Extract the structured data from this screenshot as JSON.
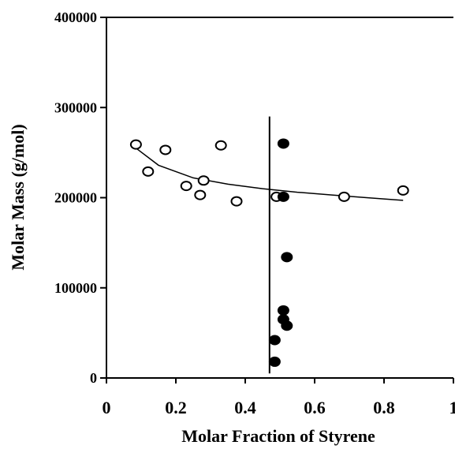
{
  "chart_data": {
    "type": "scatter",
    "title": "",
    "xlabel": "Molar Fraction of Styrene",
    "ylabel": "Molar Mass (g/mol)",
    "xlim": [
      0,
      1
    ],
    "ylim": [
      0,
      400000
    ],
    "x_ticks": [
      "0",
      "0.2",
      "0.4",
      "0.6",
      "0.8",
      "1"
    ],
    "y_ticks": [
      "0",
      "100000",
      "200000",
      "300000",
      "400000"
    ],
    "x_tick_values": [
      0,
      0.2,
      0.4,
      0.6,
      0.8,
      1
    ],
    "y_tick_values": [
      0,
      100000,
      200000,
      300000,
      400000
    ],
    "grid": false,
    "legend": "none",
    "series": [
      {
        "marker": "open-circle",
        "color": "#000000",
        "points": [
          [
            0.085,
            259000
          ],
          [
            0.12,
            229000
          ],
          [
            0.17,
            253000
          ],
          [
            0.23,
            213000
          ],
          [
            0.27,
            203000
          ],
          [
            0.28,
            219000
          ],
          [
            0.33,
            258000
          ],
          [
            0.375,
            196000
          ],
          [
            0.49,
            201000
          ],
          [
            0.685,
            201000
          ],
          [
            0.855,
            208000
          ]
        ]
      },
      {
        "marker": "filled-circle",
        "color": "#000000",
        "points": [
          [
            0.51,
            260000
          ],
          [
            0.51,
            201000
          ],
          [
            0.52,
            134000
          ],
          [
            0.51,
            75000
          ],
          [
            0.51,
            65000
          ],
          [
            0.52,
            58000
          ],
          [
            0.485,
            42000
          ],
          [
            0.485,
            18000
          ]
        ]
      }
    ],
    "trend_curve": [
      [
        0.085,
        255000
      ],
      [
        0.15,
        236000
      ],
      [
        0.25,
        222000
      ],
      [
        0.35,
        215000
      ],
      [
        0.45,
        210000
      ],
      [
        0.55,
        206000
      ],
      [
        0.65,
        203000
      ],
      [
        0.75,
        200000
      ],
      [
        0.855,
        197000
      ]
    ],
    "vertical_line": {
      "x": 0.47,
      "y_from": 5000,
      "y_to": 290000
    }
  }
}
